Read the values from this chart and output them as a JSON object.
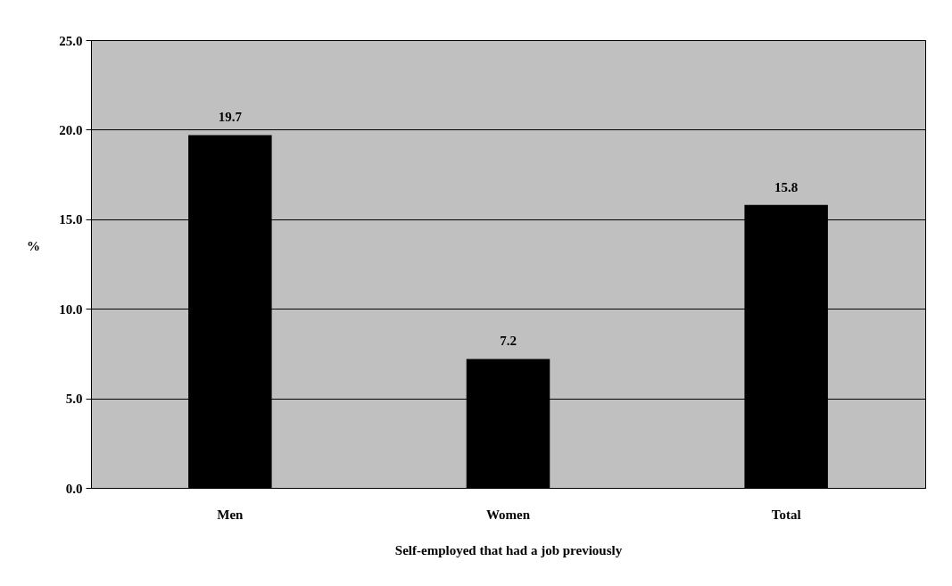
{
  "chart_data": {
    "type": "bar",
    "xlabel": "Self-employed that had a job previously",
    "ylabel": "%",
    "categories": [
      "Men",
      "Women",
      "Total"
    ],
    "values": [
      19.7,
      7.2,
      15.8
    ],
    "color": "#000000",
    "ylim": [
      0,
      25
    ],
    "yticks": [
      {
        "value": 0,
        "label": "0.0"
      },
      {
        "value": 5,
        "label": "5.0"
      },
      {
        "value": 10,
        "label": "10.0"
      },
      {
        "value": 15,
        "label": "15.0"
      },
      {
        "value": 20,
        "label": "20.0"
      },
      {
        "value": 25,
        "label": "25.0"
      }
    ],
    "grid": "y",
    "data_labels": true
  }
}
